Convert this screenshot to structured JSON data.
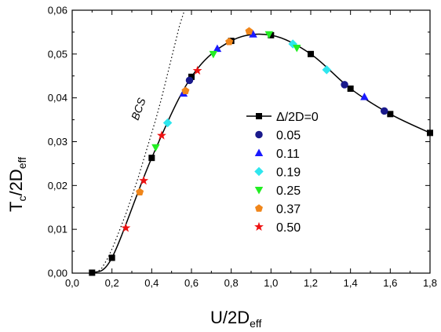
{
  "chart_data": {
    "type": "scatter",
    "xlabel": "U/2D",
    "xlabel_sub": "eff",
    "ylabel_main": "T",
    "ylabel_sub1": "c",
    "ylabel_mid": "/2D",
    "ylabel_sub2": "eff",
    "xlim": [
      0.0,
      1.8
    ],
    "ylim": [
      0.0,
      0.06
    ],
    "x_ticks": [
      {
        "v": 0.0,
        "label": "0,0"
      },
      {
        "v": 0.2,
        "label": "0,2"
      },
      {
        "v": 0.4,
        "label": "0,4"
      },
      {
        "v": 0.6,
        "label": "0,6"
      },
      {
        "v": 0.8,
        "label": "0,8"
      },
      {
        "v": 1.0,
        "label": "1,0"
      },
      {
        "v": 1.2,
        "label": "1,2"
      },
      {
        "v": 1.4,
        "label": "1,4"
      },
      {
        "v": 1.6,
        "label": "1,6"
      },
      {
        "v": 1.8,
        "label": "1,8"
      }
    ],
    "y_ticks": [
      {
        "v": 0.0,
        "label": "0,00"
      },
      {
        "v": 0.01,
        "label": "0,01"
      },
      {
        "v": 0.02,
        "label": "0,02"
      },
      {
        "v": 0.03,
        "label": "0,03"
      },
      {
        "v": 0.04,
        "label": "0,04"
      },
      {
        "v": 0.05,
        "label": "0,05"
      },
      {
        "v": 0.06,
        "label": "0,06"
      }
    ],
    "grid": false,
    "legend_position": "right",
    "annotation": "BCS",
    "bcs_curve": [
      [
        0.12,
        0.0
      ],
      [
        0.15,
        0.0012
      ],
      [
        0.18,
        0.0035
      ],
      [
        0.21,
        0.0065
      ],
      [
        0.24,
        0.01
      ],
      [
        0.27,
        0.0135
      ],
      [
        0.3,
        0.0175
      ],
      [
        0.33,
        0.0215
      ],
      [
        0.36,
        0.026
      ],
      [
        0.39,
        0.0305
      ],
      [
        0.42,
        0.035
      ],
      [
        0.45,
        0.04
      ],
      [
        0.48,
        0.0455
      ],
      [
        0.51,
        0.051
      ],
      [
        0.54,
        0.0565
      ],
      [
        0.565,
        0.0605
      ]
    ],
    "series": [
      {
        "name": "Δ/2D=0",
        "marker": "square",
        "color": "#000000",
        "line": true,
        "x": [
          0.1,
          0.2,
          0.4,
          0.6,
          0.8,
          1.0,
          1.2,
          1.4,
          1.6,
          1.8
        ],
        "y": [
          0.0001,
          0.0035,
          0.0263,
          0.0448,
          0.053,
          0.0543,
          0.05,
          0.0421,
          0.0363,
          0.032
        ]
      },
      {
        "name": "0.05",
        "marker": "circle",
        "color": "#1a1a8c",
        "line": false,
        "x": [
          0.59,
          1.37,
          1.57
        ],
        "y": [
          0.044,
          0.043,
          0.037
        ]
      },
      {
        "name": "0.11",
        "marker": "triangle-up",
        "color": "#1a1aff",
        "line": false,
        "x": [
          0.56,
          0.73,
          0.91,
          1.47
        ],
        "y": [
          0.041,
          0.0512,
          0.0545,
          0.0402
        ]
      },
      {
        "name": "0.19",
        "marker": "diamond",
        "color": "#2ee6ee",
        "line": false,
        "x": [
          0.48,
          1.11,
          1.28
        ],
        "y": [
          0.0343,
          0.0523,
          0.0464
        ]
      },
      {
        "name": "0.25",
        "marker": "triangle-down",
        "color": "#22ee22",
        "line": false,
        "x": [
          0.42,
          0.71,
          0.99,
          1.13
        ],
        "y": [
          0.0287,
          0.05,
          0.0545,
          0.0514
        ]
      },
      {
        "name": "0.37",
        "marker": "pentagon",
        "color": "#f0861a",
        "line": false,
        "x": [
          0.34,
          0.57,
          0.79,
          0.89
        ],
        "y": [
          0.0185,
          0.0416,
          0.0528,
          0.0552
        ]
      },
      {
        "name": "0.50",
        "marker": "star",
        "color": "#ee1111",
        "line": false,
        "x": [
          0.27,
          0.36,
          0.45,
          0.63
        ],
        "y": [
          0.0103,
          0.0211,
          0.0314,
          0.0462
        ]
      }
    ]
  }
}
